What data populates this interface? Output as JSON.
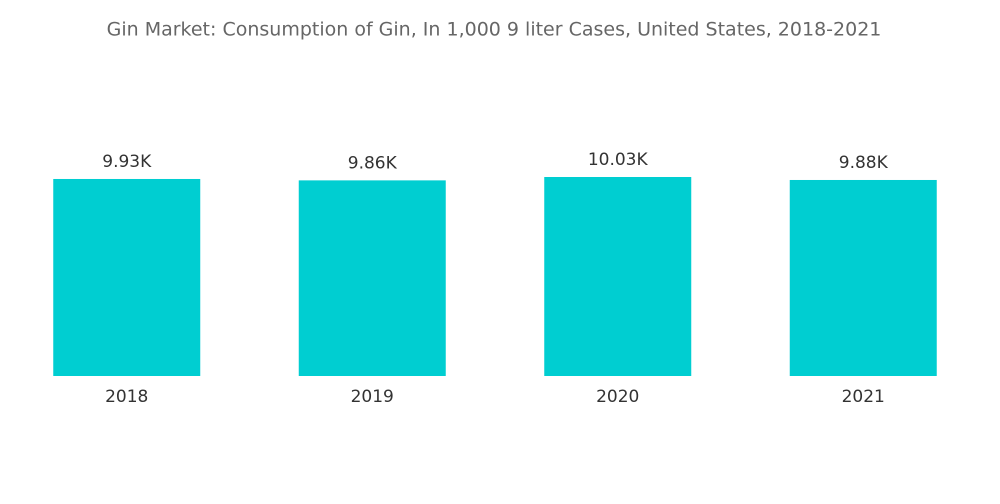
{
  "chart_data": {
    "type": "bar",
    "title": "Gin Market: Consumption of Gin, In 1,000 9 liter Cases, United States, 2018-2021",
    "categories": [
      "2018",
      "2019",
      "2020",
      "2021"
    ],
    "values": [
      9930,
      9860,
      10030,
      9880
    ],
    "value_labels": [
      "9.93K",
      "9.86K",
      "10.03K",
      "9.88K"
    ],
    "color": "#00ced1"
  }
}
